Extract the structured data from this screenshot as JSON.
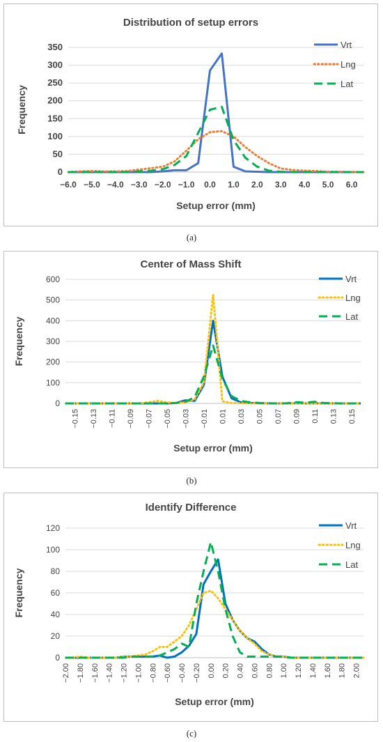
{
  "captions": [
    "(a)",
    "(b)",
    "(c)"
  ],
  "chart_data": [
    {
      "type": "line",
      "title": "Distribution of setup errors",
      "xlabel": "Setup error (mm)",
      "ylabel": "Frequency",
      "ylim": [
        0,
        350
      ],
      "yticks": [
        0,
        50,
        100,
        150,
        200,
        250,
        300,
        350
      ],
      "xlim": [
        -6.0,
        6.5
      ],
      "xticks": [
        "−6.0",
        "−5.0",
        "−4.0",
        "−3.0",
        "−2.0",
        "−1.0",
        "0.0",
        "1.0",
        "2.0",
        "3.0",
        "4.0",
        "5.0",
        "6.0"
      ],
      "xtick_values": [
        -6,
        -5,
        -4,
        -3,
        -2,
        -1,
        0,
        1,
        2,
        3,
        4,
        5,
        6
      ],
      "grid": true,
      "legend": "top-right",
      "bold_ticks": true,
      "series": [
        {
          "name": "Vrt",
          "color": "#4472c4",
          "dash": "solid",
          "x": [
            -6.0,
            -5.5,
            -5.0,
            -4.5,
            -4.0,
            -3.5,
            -3.0,
            -2.5,
            -2.0,
            -1.5,
            -1.0,
            -0.5,
            0.0,
            0.5,
            1.0,
            1.5,
            2.0,
            2.5,
            3.0,
            3.5,
            4.0,
            4.5,
            5.0,
            5.5,
            6.0,
            6.5
          ],
          "values": [
            0,
            0,
            0,
            0,
            0,
            0,
            0,
            0,
            2,
            5,
            5,
            25,
            285,
            333,
            15,
            2,
            1,
            0,
            0,
            0,
            0,
            0,
            0,
            0,
            0,
            0
          ]
        },
        {
          "name": "Lng",
          "color": "#ed7d31",
          "dash": "dot",
          "x": [
            -6.0,
            -5.5,
            -5.0,
            -4.5,
            -4.0,
            -3.5,
            -3.0,
            -2.5,
            -2.0,
            -1.5,
            -1.0,
            -0.5,
            0.0,
            0.5,
            1.0,
            1.5,
            2.0,
            2.5,
            3.0,
            3.5,
            4.0,
            4.5,
            5.0,
            5.5,
            6.0,
            6.5
          ],
          "values": [
            0,
            2,
            3,
            2,
            2,
            3,
            7,
            11,
            15,
            30,
            60,
            92,
            112,
            115,
            100,
            70,
            45,
            25,
            10,
            6,
            4,
            3,
            1,
            1,
            0,
            0
          ]
        },
        {
          "name": "Lat",
          "color": "#00b050",
          "dash": "dash",
          "x": [
            -6.0,
            -5.5,
            -5.0,
            -4.5,
            -4.0,
            -3.5,
            -3.0,
            -2.5,
            -2.0,
            -1.5,
            -1.0,
            -0.5,
            0.0,
            0.5,
            1.0,
            1.5,
            2.0,
            2.5,
            3.0,
            3.5,
            4.0,
            4.5,
            5.0,
            5.5,
            6.0,
            6.5
          ],
          "values": [
            0,
            0,
            0,
            0,
            0,
            0,
            2,
            4,
            8,
            20,
            45,
            110,
            175,
            183,
            90,
            40,
            15,
            4,
            1,
            0,
            0,
            0,
            0,
            0,
            0,
            0
          ]
        }
      ]
    },
    {
      "type": "line",
      "title": "Center of Mass Shift",
      "xlabel": "Setup error (mm)",
      "ylabel": "Frequency",
      "ylim": [
        0,
        600
      ],
      "yticks": [
        0,
        100,
        200,
        300,
        400,
        500,
        600
      ],
      "xlim": [
        -0.16,
        0.16
      ],
      "xticks": [
        "−0.15",
        "−0.13",
        "−0.11",
        "−0.09",
        "−0.07",
        "−0.05",
        "−0.03",
        "−0.01",
        "0.01",
        "0.03",
        "0.05",
        "0.07",
        "0.09",
        "0.11",
        "0.13",
        "0.15"
      ],
      "xtick_values": [
        -0.15,
        -0.13,
        -0.11,
        -0.09,
        -0.07,
        -0.05,
        -0.03,
        -0.01,
        0.01,
        0.03,
        0.05,
        0.07,
        0.09,
        0.11,
        0.13,
        0.15
      ],
      "grid": true,
      "legend": "top-right",
      "bold_ticks": false,
      "series": [
        {
          "name": "Vrt",
          "color": "#0070c0",
          "dash": "solid",
          "x": [
            -0.16,
            -0.15,
            -0.14,
            -0.13,
            -0.12,
            -0.11,
            -0.1,
            -0.09,
            -0.08,
            -0.07,
            -0.06,
            -0.05,
            -0.04,
            -0.03,
            -0.02,
            -0.01,
            0.0,
            0.01,
            0.02,
            0.03,
            0.04,
            0.05,
            0.06,
            0.07,
            0.08,
            0.09,
            0.1,
            0.11,
            0.12,
            0.13,
            0.14,
            0.15,
            0.16
          ],
          "values": [
            0,
            0,
            0,
            0,
            0,
            0,
            0,
            0,
            0,
            0,
            0,
            0,
            2,
            15,
            12,
            90,
            400,
            130,
            25,
            5,
            2,
            1,
            0,
            0,
            0,
            1,
            0,
            1,
            0,
            0,
            0,
            0,
            0
          ]
        },
        {
          "name": "Lng",
          "color": "#ffc000",
          "dash": "dot",
          "x": [
            -0.16,
            -0.15,
            -0.14,
            -0.13,
            -0.12,
            -0.11,
            -0.1,
            -0.09,
            -0.08,
            -0.07,
            -0.06,
            -0.05,
            -0.04,
            -0.03,
            -0.02,
            -0.01,
            0.0,
            0.01,
            0.02,
            0.03,
            0.04,
            0.05,
            0.06,
            0.07,
            0.08,
            0.09,
            0.1,
            0.11,
            0.12,
            0.13,
            0.14,
            0.15,
            0.16
          ],
          "values": [
            0,
            0,
            0,
            0,
            0,
            0,
            0,
            0,
            0,
            5,
            12,
            5,
            2,
            5,
            20,
            100,
            525,
            10,
            2,
            1,
            0,
            0,
            0,
            0,
            0,
            0,
            0,
            0,
            0,
            0,
            0,
            0,
            0
          ]
        },
        {
          "name": "Lat",
          "color": "#00b050",
          "dash": "dash",
          "x": [
            -0.16,
            -0.15,
            -0.14,
            -0.13,
            -0.12,
            -0.11,
            -0.1,
            -0.09,
            -0.08,
            -0.07,
            -0.06,
            -0.05,
            -0.04,
            -0.03,
            -0.02,
            -0.01,
            0.0,
            0.01,
            0.02,
            0.03,
            0.04,
            0.05,
            0.06,
            0.07,
            0.08,
            0.09,
            0.1,
            0.11,
            0.12,
            0.13,
            0.14,
            0.15,
            0.16
          ],
          "values": [
            0,
            0,
            0,
            0,
            0,
            0,
            0,
            0,
            0,
            0,
            0,
            0,
            2,
            8,
            30,
            130,
            280,
            120,
            35,
            12,
            5,
            2,
            1,
            0,
            1,
            6,
            3,
            8,
            2,
            1,
            0,
            0,
            0
          ]
        }
      ]
    },
    {
      "type": "line",
      "title": "Identify Difference",
      "xlabel": "Setup error (mm)",
      "ylabel": "Frequency",
      "ylim": [
        0,
        120
      ],
      "yticks": [
        0,
        20,
        40,
        60,
        80,
        100,
        120
      ],
      "xlim": [
        -2.0,
        2.1
      ],
      "xticks": [
        "−2.00",
        "−1.80",
        "−1.60",
        "−1.40",
        "−1.20",
        "−1.00",
        "−0.80",
        "−0.60",
        "−0.40",
        "−0.20",
        "0.00",
        "0.20",
        "0.40",
        "0.60",
        "0.80",
        "1.00",
        "1.20",
        "1.40",
        "1.60",
        "1.80",
        "2.00"
      ],
      "xtick_values": [
        -2.0,
        -1.8,
        -1.6,
        -1.4,
        -1.2,
        -1.0,
        -0.8,
        -0.6,
        -0.4,
        -0.2,
        0.0,
        0.2,
        0.4,
        0.6,
        0.8,
        1.0,
        1.2,
        1.4,
        1.6,
        1.8,
        2.0
      ],
      "grid": true,
      "legend": "top-right",
      "bold_ticks": false,
      "series": [
        {
          "name": "Vrt",
          "color": "#0070c0",
          "dash": "solid",
          "x": [
            -2.0,
            -1.9,
            -1.8,
            -1.7,
            -1.6,
            -1.5,
            -1.4,
            -1.3,
            -1.2,
            -1.1,
            -1.0,
            -0.9,
            -0.8,
            -0.7,
            -0.6,
            -0.5,
            -0.4,
            -0.3,
            -0.2,
            -0.1,
            0.0,
            0.1,
            0.2,
            0.3,
            0.4,
            0.5,
            0.6,
            0.7,
            0.8,
            0.9,
            1.0,
            1.1,
            1.2,
            1.3,
            1.4,
            1.5,
            1.6,
            1.7,
            1.8,
            1.9,
            2.0,
            2.1
          ],
          "values": [
            0,
            0,
            0,
            0,
            0,
            0,
            0,
            0,
            1,
            1,
            1,
            1,
            1,
            2,
            0,
            1,
            5,
            11,
            22,
            68,
            80,
            91,
            50,
            35,
            25,
            18,
            15,
            8,
            3,
            1,
            1,
            0,
            0,
            0,
            0,
            0,
            0,
            0,
            0,
            0,
            0,
            0
          ]
        },
        {
          "name": "Lng",
          "color": "#ffc000",
          "dash": "dot",
          "x": [
            -2.0,
            -1.9,
            -1.8,
            -1.7,
            -1.6,
            -1.5,
            -1.4,
            -1.3,
            -1.2,
            -1.1,
            -1.0,
            -0.9,
            -0.8,
            -0.7,
            -0.6,
            -0.5,
            -0.4,
            -0.3,
            -0.2,
            -0.1,
            0.0,
            0.1,
            0.2,
            0.3,
            0.4,
            0.5,
            0.6,
            0.7,
            0.8,
            0.9,
            1.0,
            1.1,
            1.2,
            1.3,
            1.4,
            1.5,
            1.6,
            1.7,
            1.8,
            1.9,
            2.0,
            2.1
          ],
          "values": [
            0,
            0,
            1,
            0,
            0,
            0,
            0,
            0,
            1,
            1,
            2,
            3,
            6,
            10,
            10,
            15,
            20,
            30,
            45,
            60,
            62,
            55,
            45,
            35,
            25,
            18,
            13,
            6,
            3,
            1,
            1,
            0,
            0,
            0,
            0,
            0,
            0,
            0,
            0,
            0,
            0,
            0
          ]
        },
        {
          "name": "Lat",
          "color": "#00b050",
          "dash": "dash",
          "x": [
            -2.0,
            -1.9,
            -1.8,
            -1.7,
            -1.6,
            -1.5,
            -1.4,
            -1.3,
            -1.2,
            -1.1,
            -1.0,
            -0.9,
            -0.8,
            -0.7,
            -0.6,
            -0.5,
            -0.4,
            -0.3,
            -0.2,
            -0.1,
            0.0,
            0.1,
            0.2,
            0.3,
            0.4,
            0.5,
            0.6,
            0.7,
            0.8,
            0.9,
            1.0,
            1.1,
            1.2,
            1.3,
            1.4,
            1.5,
            1.6,
            1.7,
            1.8,
            1.9,
            2.0,
            2.1
          ],
          "values": [
            0,
            0,
            0,
            0,
            0,
            0,
            0,
            0,
            0,
            1,
            1,
            1,
            1,
            2,
            5,
            8,
            13,
            10,
            50,
            80,
            107,
            80,
            45,
            20,
            5,
            1,
            1,
            1,
            1,
            1,
            1,
            0,
            0,
            0,
            0,
            0,
            0,
            0,
            0,
            0,
            0,
            0
          ]
        }
      ]
    }
  ]
}
